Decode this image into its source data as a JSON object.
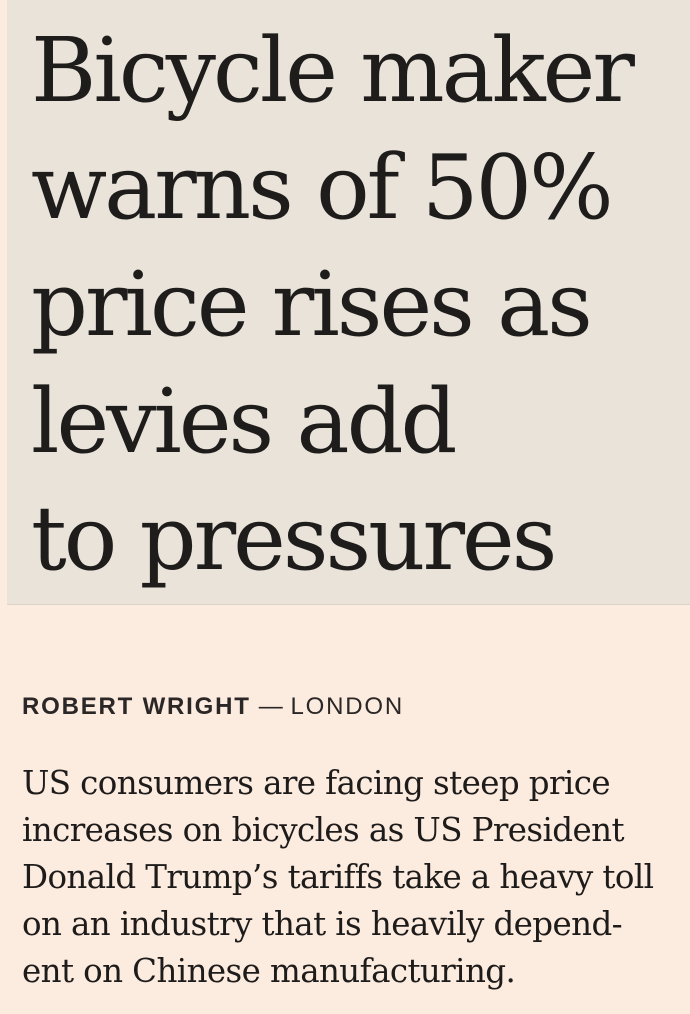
{
  "article": {
    "headline_lines": [
      "Bicycle maker",
      "warns of 50%",
      "price rises as",
      "levies add",
      "to pressures"
    ],
    "byline": {
      "author": "ROBERT WRIGHT",
      "separator": "—",
      "location": "LONDON"
    },
    "standfirst_lines": [
      "US consumers are facing steep price",
      "increases on bicycles as US President",
      "Donald Trump’s tariffs take a heavy toll",
      "on an industry that is heavily depend-",
      "ent on Chinese manufacturing."
    ]
  },
  "colors": {
    "page_background": "#fcebdf",
    "headline_panel": "#e9e3da",
    "text": "#1f1d1c"
  }
}
